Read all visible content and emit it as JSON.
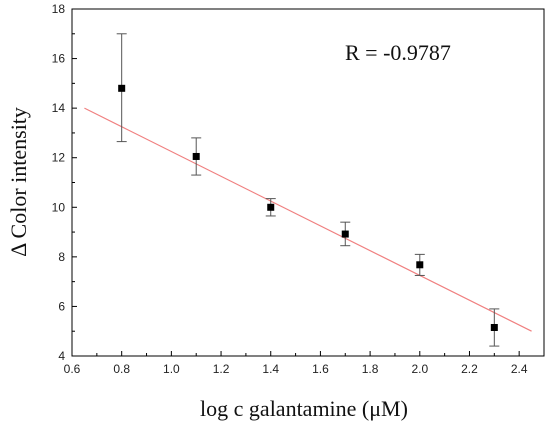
{
  "chart_data": {
    "type": "scatter",
    "xlabel": "log c galantamine (μM)",
    "ylabel": "Δ Color intensity",
    "xlim": [
      0.6,
      2.5
    ],
    "ylim": [
      4,
      18
    ],
    "x_ticks": [
      "0.6",
      "0.8",
      "1.0",
      "1.2",
      "1.4",
      "1.6",
      "1.8",
      "2.0",
      "2.2",
      "2.4"
    ],
    "y_ticks": [
      "4",
      "6",
      "8",
      "10",
      "12",
      "14",
      "16",
      "18"
    ],
    "grid": false,
    "legend": "none",
    "annotation": "R = -0.9787",
    "series": [
      {
        "marker": "square",
        "color": "#000000",
        "x": [
          0.8,
          1.1,
          1.4,
          1.7,
          2.0,
          2.3
        ],
        "y": [
          14.8,
          12.05,
          10.0,
          8.92,
          7.68,
          5.15
        ],
        "err_low": [
          12.65,
          11.3,
          9.65,
          8.45,
          7.25,
          4.4
        ],
        "err_high": [
          17.0,
          12.8,
          10.35,
          9.4,
          8.1,
          5.9
        ]
      }
    ],
    "fit_line": {
      "color": "#f08080",
      "x": [
        0.65,
        2.45
      ],
      "y": [
        14.0,
        5.0
      ]
    }
  }
}
